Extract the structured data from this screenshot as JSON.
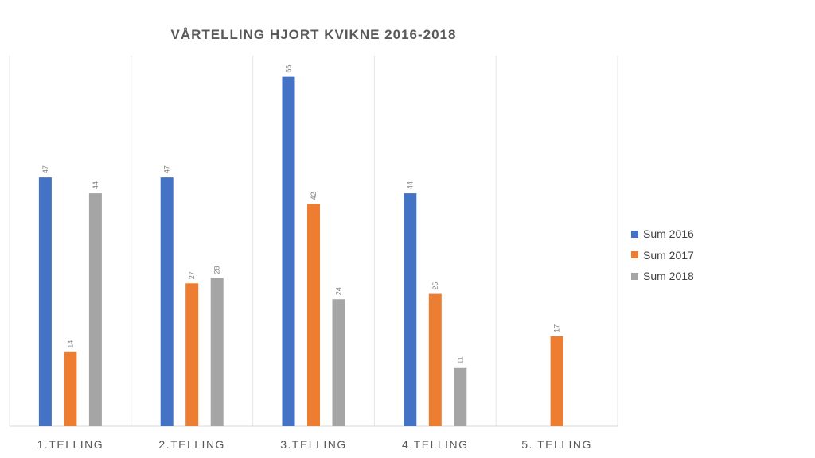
{
  "chart_data": {
    "type": "bar",
    "title": "VÅRTELLING HJORT KVIKNE 2016-2018",
    "categories": [
      "1.TELLING",
      "2.TELLING",
      "3.TELLING",
      "4.TELLING",
      "5. TELLING"
    ],
    "series": [
      {
        "name": "Sum 2016",
        "color": "#4472c4",
        "values": [
          47,
          47,
          66,
          44,
          null
        ]
      },
      {
        "name": "Sum 2017",
        "color": "#ed7d31",
        "values": [
          14,
          27,
          42,
          25,
          17
        ]
      },
      {
        "name": "Sum 2018",
        "color": "#a5a5a5",
        "values": [
          44,
          28,
          24,
          11,
          null
        ]
      }
    ],
    "xlabel": "",
    "ylabel": "",
    "ylim": [
      0,
      70
    ],
    "grid": "vertical category separators",
    "legend_position": "right"
  }
}
